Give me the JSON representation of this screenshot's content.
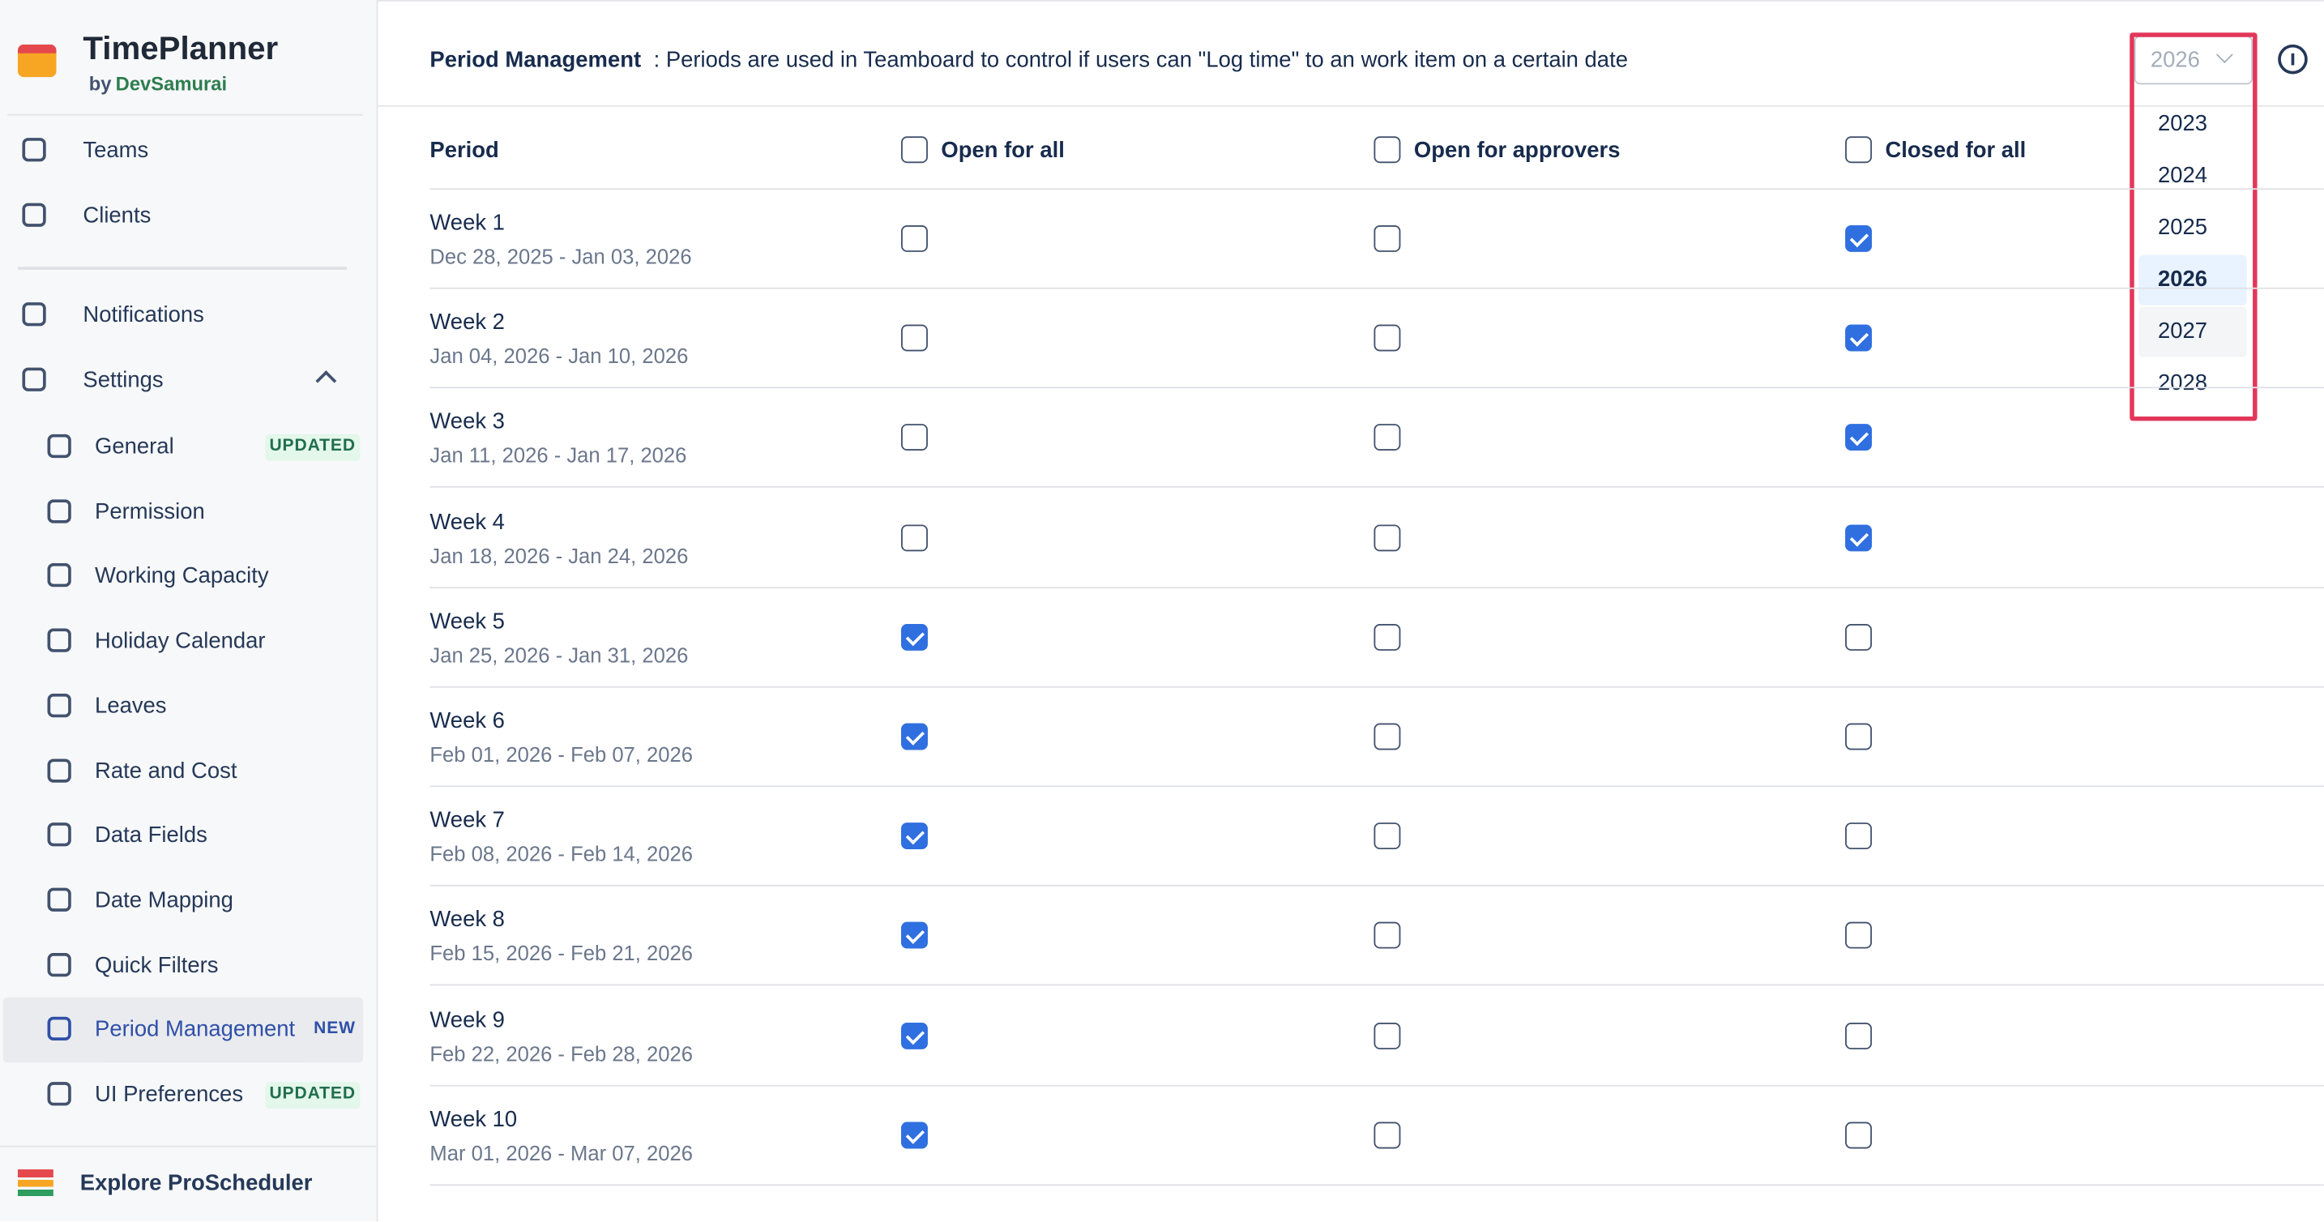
{
  "sidebar": {
    "brand": {
      "title": "TimePlanner",
      "by": "by",
      "company": "DevSamurai"
    },
    "nav": [
      {
        "label": "Teams"
      },
      {
        "label": "Clients"
      }
    ],
    "nav2": [
      {
        "label": "Notifications"
      },
      {
        "label": "Settings"
      }
    ],
    "settings_items": [
      {
        "label": "General",
        "badge": "UPDATED"
      },
      {
        "label": "Permission"
      },
      {
        "label": "Working Capacity"
      },
      {
        "label": "Holiday Calendar"
      },
      {
        "label": "Leaves"
      },
      {
        "label": "Rate and Cost"
      },
      {
        "label": "Data Fields"
      },
      {
        "label": "Date Mapping"
      },
      {
        "label": "Quick Filters"
      },
      {
        "label": "Period Management",
        "badge": "NEW",
        "active": true
      },
      {
        "label": "UI Preferences",
        "badge": "UPDATED"
      }
    ],
    "footer": "Explore ProScheduler"
  },
  "header": {
    "title": "Period Management",
    "description": ": Periods are used in Teamboard to control if users can \"Log time\" to an work item on a certain date",
    "year": "2026"
  },
  "year_dropdown": [
    {
      "label": "2023"
    },
    {
      "label": "2024"
    },
    {
      "label": "2025"
    },
    {
      "label": "2026",
      "selected": true
    },
    {
      "label": "2027",
      "hovered": true
    },
    {
      "label": "2028"
    }
  ],
  "table": {
    "columns": [
      "Period",
      "Open for all",
      "Open for approvers",
      "Closed for all"
    ],
    "rows": [
      {
        "name": "Week 1",
        "dates": "Dec 28, 2025 - Jan 03, 2026",
        "status": [
          false,
          false,
          true
        ]
      },
      {
        "name": "Week 2",
        "dates": "Jan 04, 2026 - Jan 10, 2026",
        "status": [
          false,
          false,
          true
        ]
      },
      {
        "name": "Week 3",
        "dates": "Jan 11, 2026 - Jan 17, 2026",
        "status": [
          false,
          false,
          true
        ]
      },
      {
        "name": "Week 4",
        "dates": "Jan 18, 2026 - Jan 24, 2026",
        "status": [
          false,
          false,
          true
        ]
      },
      {
        "name": "Week 5",
        "dates": "Jan 25, 2026 - Jan 31, 2026",
        "status": [
          true,
          false,
          false
        ]
      },
      {
        "name": "Week 6",
        "dates": "Feb 01, 2026 - Feb 07, 2026",
        "status": [
          true,
          false,
          false
        ]
      },
      {
        "name": "Week 7",
        "dates": "Feb 08, 2026 - Feb 14, 2026",
        "status": [
          true,
          false,
          false
        ]
      },
      {
        "name": "Week 8",
        "dates": "Feb 15, 2026 - Feb 21, 2026",
        "status": [
          true,
          false,
          false
        ]
      },
      {
        "name": "Week 9",
        "dates": "Feb 22, 2026 - Feb 28, 2026",
        "status": [
          true,
          false,
          false
        ]
      },
      {
        "name": "Week 10",
        "dates": "Mar 01, 2026 - Mar 07, 2026",
        "status": [
          true,
          false,
          false
        ]
      }
    ]
  }
}
